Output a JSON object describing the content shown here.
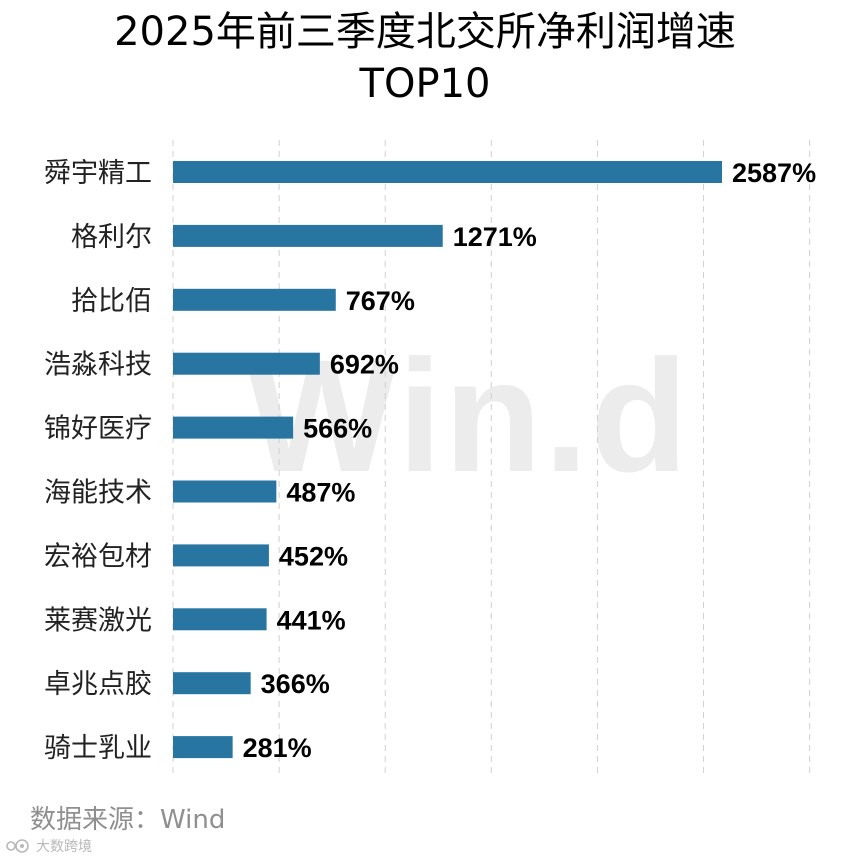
{
  "title_lines": [
    "2025年前三季度北交所净利润增速",
    "TOP10"
  ],
  "watermark": "Win.d",
  "source": "数据来源：Wind",
  "logo": {
    "icon": "eye-dot-logo-icon",
    "text": "大数跨境"
  },
  "colors": {
    "bar": "#2775a0",
    "grid": "#d0d0d0",
    "label": "#000000",
    "category": "#222222",
    "watermark": "#e6e6e6",
    "source": "#8f8f8f"
  },
  "chart_data": {
    "type": "bar",
    "orientation": "horizontal",
    "categories": [
      "舜宇精工",
      "格利尔",
      "拾比佰",
      "浩淼科技",
      "锦好医疗",
      "海能技术",
      "宏裕包材",
      "莱赛激光",
      "卓兆点胶",
      "骑士乳业"
    ],
    "values": [
      2587,
      1271,
      767,
      692,
      566,
      487,
      452,
      441,
      366,
      281
    ],
    "value_suffix": "%",
    "xlim": [
      0,
      3000
    ],
    "grid": "vertical-dashed"
  }
}
